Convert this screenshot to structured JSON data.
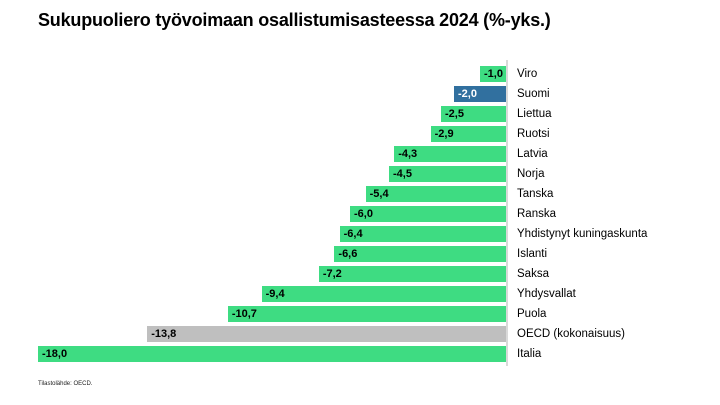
{
  "chart_data": {
    "type": "bar",
    "orientation": "horizontal",
    "title": "Sukupuoliero työvoimaan osallistumisasteessa 2024 (%-yks.)",
    "xlabel": "",
    "ylabel": "",
    "value_axis_range": [
      -18,
      0
    ],
    "grid": false,
    "legend": false,
    "decimal_separator": ",",
    "categories": [
      "Viro",
      "Suomi",
      "Liettua",
      "Ruotsi",
      "Latvia",
      "Norja",
      "Tanska",
      "Ranska",
      "Yhdistynyt kuningaskunta",
      "Islanti",
      "Saksa",
      "Yhdysvallat",
      "Puola",
      "OECD (kokonaisuus)",
      "Italia"
    ],
    "values": [
      -1.0,
      -2.0,
      -2.5,
      -2.9,
      -4.3,
      -4.5,
      -5.4,
      -6.0,
      -6.4,
      -6.6,
      -7.2,
      -9.4,
      -10.7,
      -13.8,
      -18.0
    ],
    "items": [
      {
        "label": "Viro",
        "value": -1.0,
        "value_display": "-1,0",
        "color_role": "green"
      },
      {
        "label": "Suomi",
        "value": -2.0,
        "value_display": "-2,0",
        "color_role": "blue"
      },
      {
        "label": "Liettua",
        "value": -2.5,
        "value_display": "-2,5",
        "color_role": "green"
      },
      {
        "label": "Ruotsi",
        "value": -2.9,
        "value_display": "-2,9",
        "color_role": "green"
      },
      {
        "label": "Latvia",
        "value": -4.3,
        "value_display": "-4,3",
        "color_role": "green"
      },
      {
        "label": "Norja",
        "value": -4.5,
        "value_display": "-4,5",
        "color_role": "green"
      },
      {
        "label": "Tanska",
        "value": -5.4,
        "value_display": "-5,4",
        "color_role": "green"
      },
      {
        "label": "Ranska",
        "value": -6.0,
        "value_display": "-6,0",
        "color_role": "green"
      },
      {
        "label": "Yhdistynyt kuningaskunta",
        "value": -6.4,
        "value_display": "-6,4",
        "color_role": "green"
      },
      {
        "label": "Islanti",
        "value": -6.6,
        "value_display": "-6,6",
        "color_role": "green"
      },
      {
        "label": "Saksa",
        "value": -7.2,
        "value_display": "-7,2",
        "color_role": "green"
      },
      {
        "label": "Yhdysvallat",
        "value": -9.4,
        "value_display": "-9,4",
        "color_role": "green"
      },
      {
        "label": "Puola",
        "value": -10.7,
        "value_display": "-10,7",
        "color_role": "green"
      },
      {
        "label": "OECD (kokonaisuus)",
        "value": -13.8,
        "value_display": "-13,8",
        "color_role": "gray"
      },
      {
        "label": "Italia",
        "value": -18.0,
        "value_display": "-18,0",
        "color_role": "green"
      }
    ],
    "colors": {
      "green": "#3edc82",
      "blue": "#31709f",
      "gray": "#bfbfbf",
      "axis_line": "#d9d9d9",
      "value_text_on_green": "#000000",
      "value_text_on_blue": "#ffffff",
      "value_text_on_gray": "#000000",
      "title_text": "#000000",
      "category_text": "#000000"
    }
  },
  "footer": {
    "source_note": "Tilastolähde: OECD."
  }
}
